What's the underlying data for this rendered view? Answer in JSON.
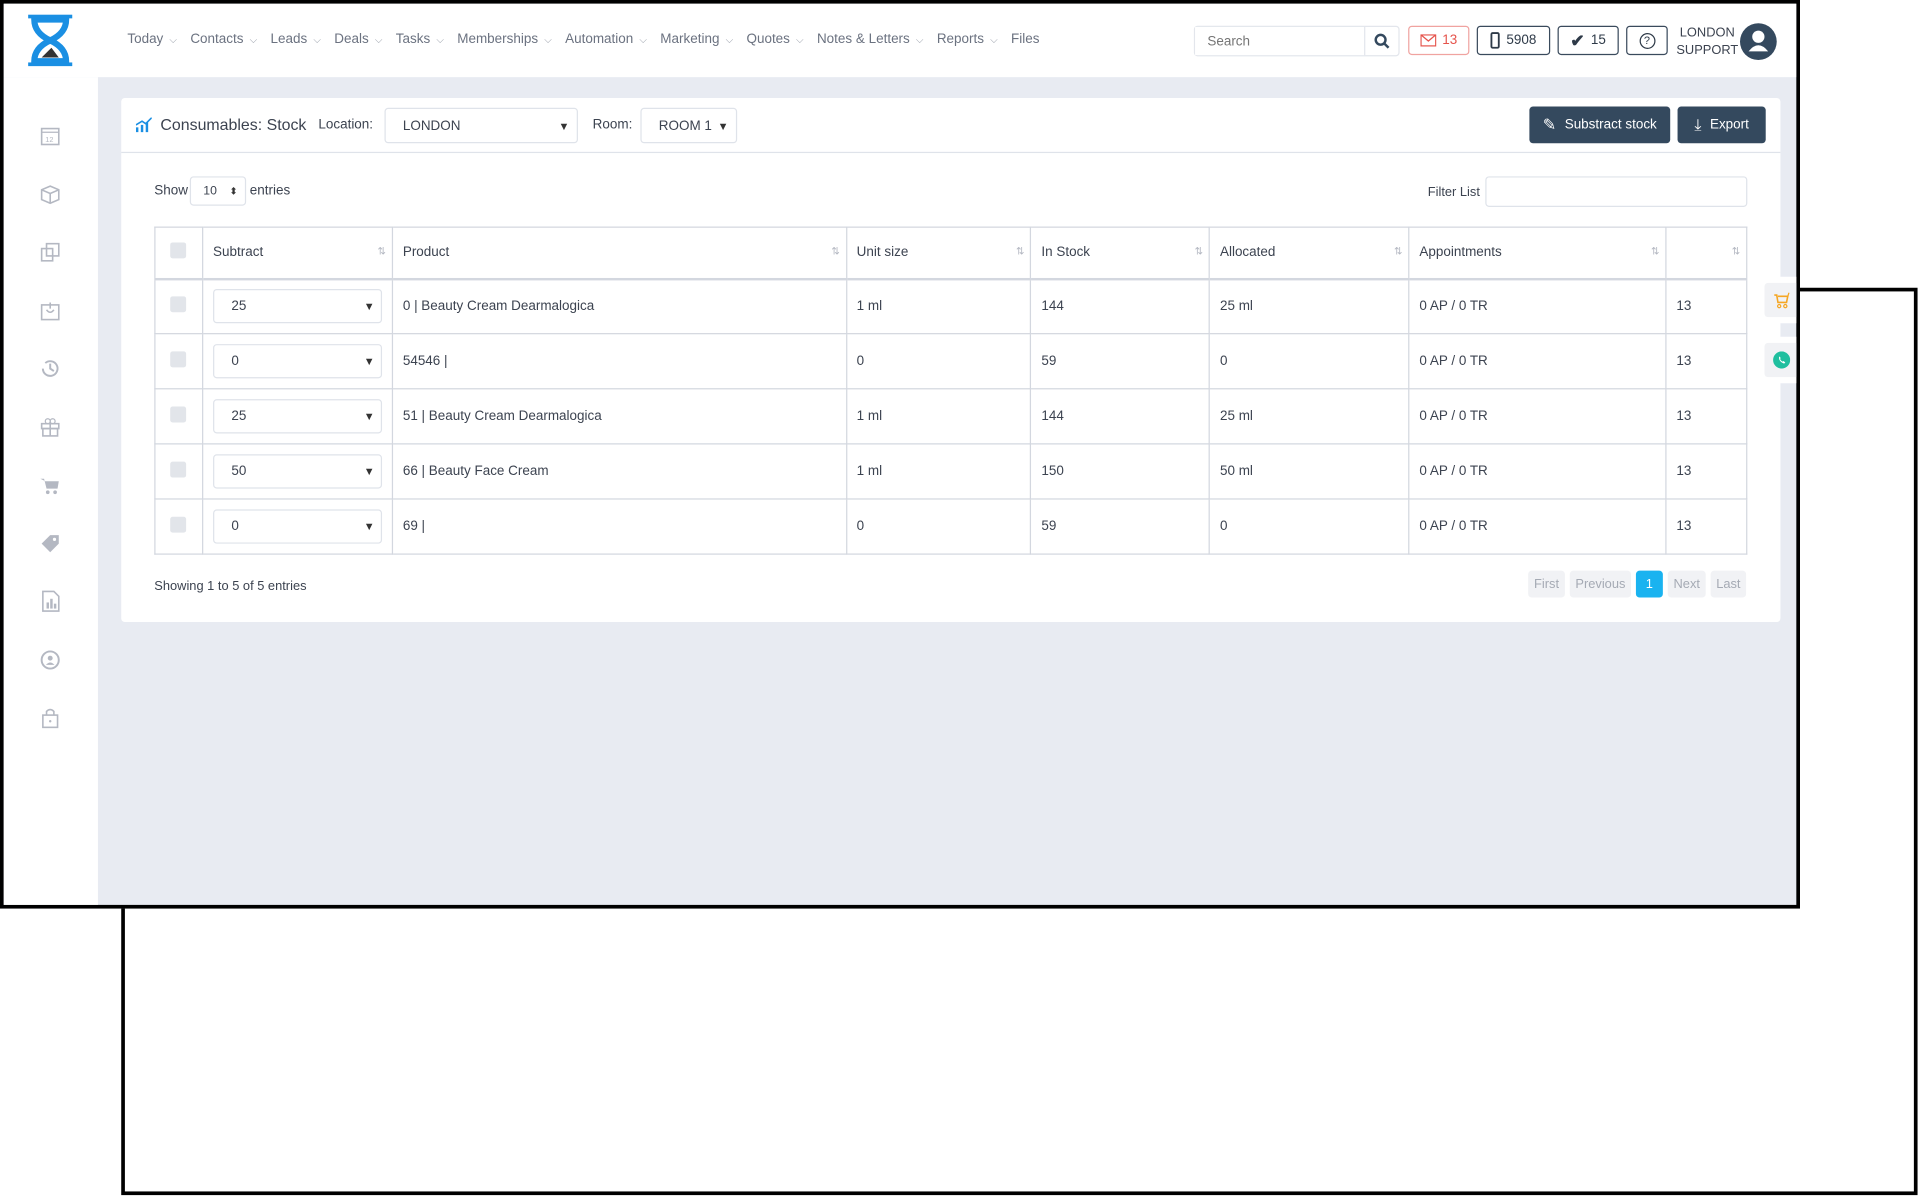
{
  "nav": {
    "items": [
      {
        "label": "Today",
        "dropdown": true
      },
      {
        "label": "Contacts",
        "dropdown": true
      },
      {
        "label": "Leads",
        "dropdown": true
      },
      {
        "label": "Deals",
        "dropdown": true
      },
      {
        "label": "Tasks",
        "dropdown": true
      },
      {
        "label": "Memberships",
        "dropdown": true
      },
      {
        "label": "Automation",
        "dropdown": true
      },
      {
        "label": "Marketing",
        "dropdown": true
      },
      {
        "label": "Quotes",
        "dropdown": true
      },
      {
        "label": "Notes & Letters",
        "dropdown": true
      },
      {
        "label": "Reports",
        "dropdown": true
      },
      {
        "label": "Files",
        "dropdown": false
      }
    ],
    "search_placeholder": "Search",
    "mail_count": "13",
    "phone_count": "5908",
    "tasks_count": "15",
    "user_line1": "LONDON",
    "user_line2": "SUPPORT"
  },
  "sidebar": {
    "icons": [
      "calendar-icon",
      "box-icon",
      "copy-icon",
      "inbox-icon",
      "history-icon",
      "gift-icon",
      "cart-icon",
      "tag-icon",
      "report-icon",
      "user-circle-icon",
      "lock-icon"
    ]
  },
  "page": {
    "title": "Consumables: Stock",
    "location_label": "Location:",
    "location_value": "LONDON",
    "room_label": "Room:",
    "room_value": "ROOM 1",
    "substract_label": "Substract stock",
    "export_label": "Export",
    "show_label": "Show",
    "entries_value": "10",
    "entries_label": "entries",
    "filter_label": "Filter List",
    "filter_value": "",
    "showing": "Showing 1 to 5 of 5 entries"
  },
  "table": {
    "columns": [
      "Subtract",
      "Product",
      "Unit size",
      "In Stock",
      "Allocated",
      "Appointments",
      ""
    ],
    "rows": [
      {
        "subtract": "25",
        "product": "0 | Beauty Cream Dearmalogica",
        "unit": "1 ml",
        "stock": "144",
        "allocated": "25 ml",
        "appointments": "0 AP / 0 TR",
        "extra": "13"
      },
      {
        "subtract": "0",
        "product": "54546 |",
        "unit": "0",
        "stock": "59",
        "allocated": "0",
        "appointments": "0 AP / 0 TR",
        "extra": "13"
      },
      {
        "subtract": "25",
        "product": "51 | Beauty Cream Dearmalogica",
        "unit": "1 ml",
        "stock": "144",
        "allocated": "25 ml",
        "appointments": "0 AP / 0 TR",
        "extra": "13"
      },
      {
        "subtract": "50",
        "product": "66 | Beauty Face Cream",
        "unit": "1 ml",
        "stock": "150",
        "allocated": "50 ml",
        "appointments": "0 AP / 0 TR",
        "extra": "13"
      },
      {
        "subtract": "0",
        "product": "69 |",
        "unit": "0",
        "stock": "59",
        "allocated": "0",
        "appointments": "0 AP / 0 TR",
        "extra": "13"
      }
    ]
  },
  "pagination": {
    "first": "First",
    "previous": "Previous",
    "current": "1",
    "next": "Next",
    "last": "Last"
  },
  "colors": {
    "accent": "#1ab3f0",
    "dark": "#34495e",
    "mail": "#e5534b",
    "background": "#e8ebf2"
  }
}
